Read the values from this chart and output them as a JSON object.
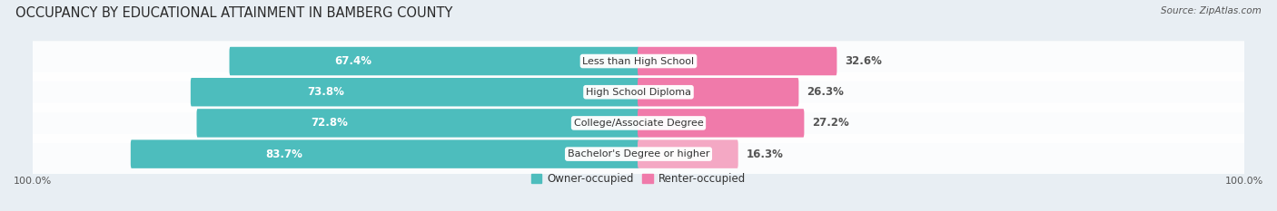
{
  "title": "OCCUPANCY BY EDUCATIONAL ATTAINMENT IN BAMBERG COUNTY",
  "source": "Source: ZipAtlas.com",
  "categories": [
    "Less than High School",
    "High School Diploma",
    "College/Associate Degree",
    "Bachelor's Degree or higher"
  ],
  "owner_values": [
    67.4,
    73.8,
    72.8,
    83.7
  ],
  "renter_values": [
    32.6,
    26.3,
    27.2,
    16.3
  ],
  "owner_color": "#4DBDBD",
  "renter_color": "#F07AAA",
  "renter_color_last": "#F4A8C4",
  "owner_label": "Owner-occupied",
  "renter_label": "Renter-occupied",
  "bar_height": 0.62,
  "background_color": "#e8eef3",
  "row_bg_color": "#dde4ea",
  "title_fontsize": 10.5,
  "pct_fontsize": 8.5,
  "cat_fontsize": 8.0,
  "tick_fontsize": 8.0,
  "legend_fontsize": 8.5,
  "x_left_label": "100.0%",
  "x_right_label": "100.0%"
}
